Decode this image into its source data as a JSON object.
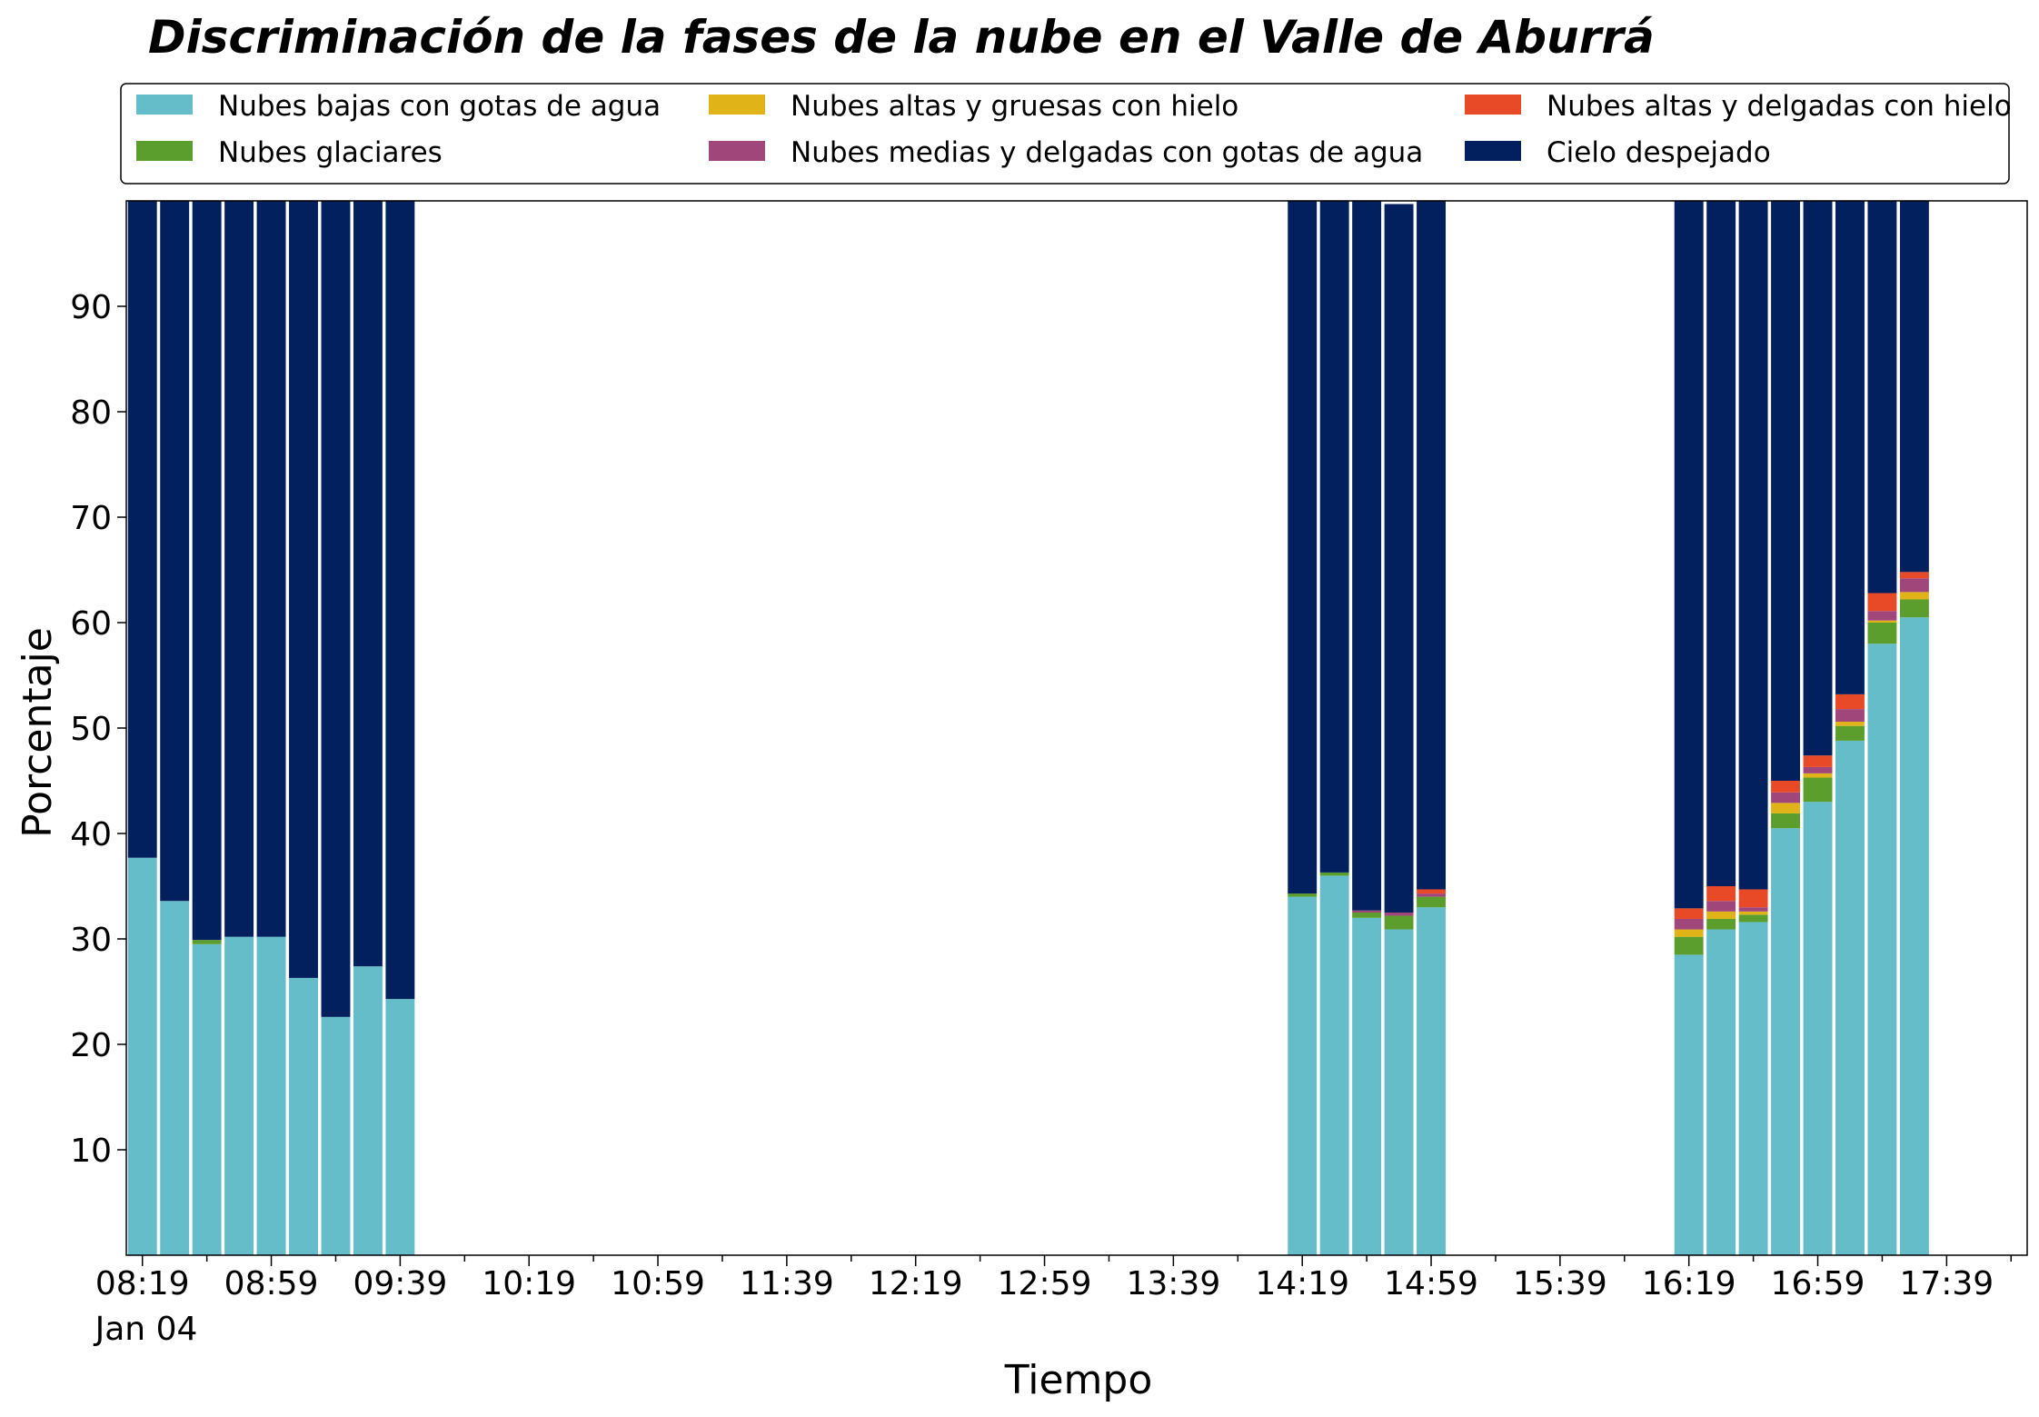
{
  "chart_data": {
    "type": "bar",
    "stacked": true,
    "title": "Discriminación de la fases de la nube en el Valle de Aburrá",
    "xlabel": "Tiempo",
    "ylabel": "Porcentaje",
    "ylim": [
      0,
      100
    ],
    "yticks": [
      10,
      20,
      30,
      40,
      50,
      60,
      70,
      80,
      90
    ],
    "xticks": [
      "08:19",
      "08:59",
      "09:39",
      "10:19",
      "10:59",
      "11:39",
      "12:19",
      "12:59",
      "13:39",
      "14:19",
      "14:59",
      "15:39",
      "16:19",
      "16:59",
      "17:39"
    ],
    "x_date_label": "Jan 04",
    "x_start": "08:19",
    "x_end": "17:59",
    "legend_position": "top",
    "grid": false,
    "x": [
      "08:19",
      "08:29",
      "08:39",
      "08:49",
      "08:59",
      "09:09",
      "09:19",
      "09:29",
      "09:39",
      "14:19",
      "14:29",
      "14:39",
      "14:49",
      "14:59",
      "16:19",
      "16:29",
      "16:39",
      "16:49",
      "16:59",
      "17:09",
      "17:19",
      "17:29"
    ],
    "series": [
      {
        "name": "Nubes bajas con gotas de agua",
        "color": "#64bdc8",
        "values": [
          37.7,
          33.6,
          29.5,
          30.2,
          30.2,
          26.3,
          22.6,
          27.4,
          24.3,
          34.0,
          36.0,
          32.0,
          30.9,
          33.0,
          28.5,
          30.9,
          31.6,
          40.5,
          43.0,
          48.8,
          58.0,
          60.5
        ]
      },
      {
        "name": "Nubes glaciares",
        "color": "#5c9e2d",
        "values": [
          0,
          0,
          0.4,
          0,
          0,
          0,
          0,
          0,
          0,
          0.3,
          0.3,
          0.5,
          1.3,
          1.0,
          1.7,
          1.0,
          0.7,
          1.4,
          2.3,
          1.4,
          2.0,
          1.7
        ]
      },
      {
        "name": "Nubes altas y gruesas con hielo",
        "color": "#e0b318",
        "values": [
          0,
          0,
          0,
          0,
          0,
          0,
          0,
          0,
          0,
          0,
          0,
          0,
          0,
          0,
          0.7,
          0.7,
          0.3,
          1.0,
          0.4,
          0.4,
          0.2,
          0.7
        ]
      },
      {
        "name": "Nubes medias y delgadas con gotas de agua",
        "color": "#a0467a",
        "values": [
          0,
          0,
          0,
          0,
          0,
          0,
          0,
          0,
          0,
          0,
          0,
          0.2,
          0.3,
          0.3,
          1.0,
          1.0,
          0.4,
          1.0,
          0.6,
          1.2,
          0.9,
          1.3
        ]
      },
      {
        "name": "Nubes altas y delgadas con hielo",
        "color": "#e84a27",
        "values": [
          0,
          0,
          0,
          0,
          0,
          0,
          0,
          0,
          0,
          0,
          0,
          0,
          0,
          0.4,
          1.0,
          1.4,
          1.7,
          1.1,
          1.1,
          1.4,
          1.7,
          0.6
        ]
      },
      {
        "name": "Cielo despejado",
        "color": "#02205e",
        "values": [
          62.3,
          66.4,
          70.1,
          69.8,
          69.8,
          73.7,
          77.4,
          72.6,
          75.7,
          65.7,
          63.7,
          67.3,
          67.2,
          65.3,
          67.1,
          65.0,
          65.3,
          55.0,
          52.6,
          46.8,
          37.2,
          35.2
        ]
      }
    ]
  }
}
